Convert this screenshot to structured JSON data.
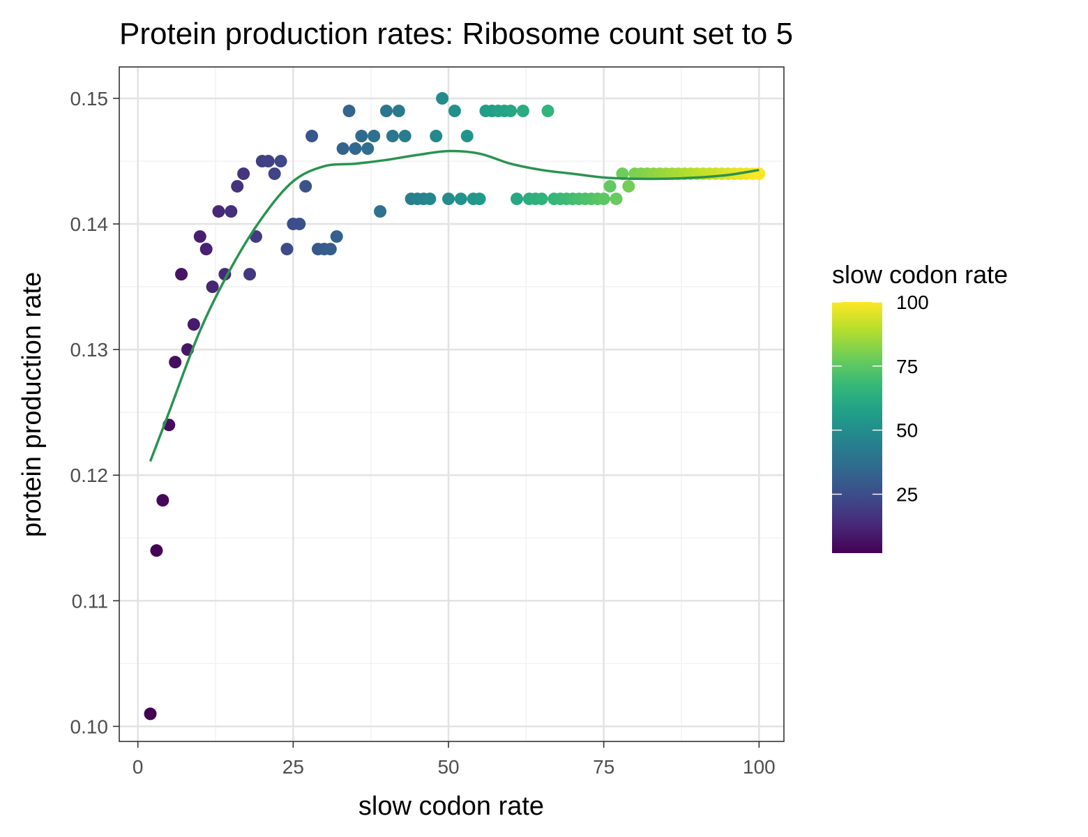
{
  "colors": {
    "background": "#ffffff",
    "grid_major": "#e3e3e3",
    "grid_minor": "#f1f1f1",
    "panel_border": "#333333",
    "smooth_line": "#2a9350",
    "viridis": [
      "#440154",
      "#482878",
      "#3e4a89",
      "#31688e",
      "#26828e",
      "#1f9e89",
      "#35b779",
      "#6dcd59",
      "#b4de2c",
      "#fde725"
    ]
  },
  "chart_data": {
    "type": "scatter",
    "title": "Protein production rates: Ribosome count set to 5",
    "xlabel": "slow codon rate",
    "ylabel": "protein production rate",
    "xlim": [
      -3,
      104
    ],
    "ylim": [
      0.0988,
      0.1525
    ],
    "x_ticks": [
      0,
      25,
      50,
      75,
      100
    ],
    "x_tick_labels": [
      "0",
      "25",
      "50",
      "75",
      "100"
    ],
    "x_minor_ticks": [
      12.5,
      37.5,
      62.5,
      87.5
    ],
    "y_ticks": [
      0.1,
      0.11,
      0.12,
      0.13,
      0.14,
      0.15
    ],
    "y_tick_labels": [
      "0.10",
      "0.11",
      "0.12",
      "0.13",
      "0.14",
      "0.15"
    ],
    "y_minor_ticks": [
      0.105,
      0.115,
      0.125,
      0.135,
      0.145
    ],
    "grid": true,
    "color_scale": "viridis",
    "legend": {
      "title": "slow codon rate",
      "position": "right",
      "range": [
        2,
        100
      ],
      "ticks": [
        25,
        50,
        75,
        100
      ],
      "tick_labels": [
        "25",
        "50",
        "75",
        "100"
      ]
    },
    "points": {
      "x": [
        2,
        3,
        4,
        5,
        6,
        7,
        8,
        9,
        10,
        11,
        12,
        13,
        14,
        15,
        16,
        17,
        18,
        19,
        20,
        21,
        22,
        23,
        24,
        25,
        26,
        27,
        28,
        29,
        30,
        31,
        32,
        33,
        34,
        35,
        36,
        37,
        38,
        39,
        40,
        41,
        42,
        43,
        44,
        45,
        46,
        47,
        48,
        49,
        50,
        51,
        52,
        53,
        54,
        55,
        56,
        57,
        58,
        59,
        60,
        61,
        62,
        63,
        64,
        65,
        66,
        67,
        68,
        69,
        70,
        71,
        72,
        73,
        74,
        75,
        76,
        77,
        78,
        79,
        80,
        81,
        82,
        83,
        84,
        85,
        86,
        87,
        88,
        89,
        90,
        91,
        92,
        93,
        94,
        95,
        96,
        97,
        98,
        99,
        100
      ],
      "y": [
        0.101,
        0.114,
        0.118,
        0.124,
        0.129,
        0.136,
        0.13,
        0.132,
        0.139,
        0.138,
        0.135,
        0.141,
        0.136,
        0.141,
        0.143,
        0.144,
        0.136,
        0.139,
        0.145,
        0.145,
        0.144,
        0.145,
        0.138,
        0.14,
        0.14,
        0.143,
        0.147,
        0.138,
        0.138,
        0.138,
        0.139,
        0.146,
        0.149,
        0.146,
        0.147,
        0.146,
        0.147,
        0.141,
        0.149,
        0.147,
        0.149,
        0.147,
        0.142,
        0.142,
        0.142,
        0.142,
        0.147,
        0.15,
        0.142,
        0.149,
        0.142,
        0.147,
        0.142,
        0.142,
        0.149,
        0.149,
        0.149,
        0.149,
        0.149,
        0.142,
        0.149,
        0.142,
        0.142,
        0.142,
        0.149,
        0.142,
        0.142,
        0.142,
        0.142,
        0.142,
        0.142,
        0.142,
        0.142,
        0.142,
        0.143,
        0.142,
        0.144,
        0.143,
        0.144,
        0.144,
        0.144,
        0.144,
        0.144,
        0.144,
        0.144,
        0.144,
        0.144,
        0.144,
        0.144,
        0.144,
        0.144,
        0.144,
        0.144,
        0.144,
        0.144,
        0.144,
        0.144,
        0.144,
        0.144
      ]
    },
    "smooth_line": {
      "x": [
        2,
        5,
        10,
        15,
        20,
        25,
        30,
        35,
        40,
        45,
        50,
        55,
        60,
        65,
        70,
        75,
        80,
        85,
        90,
        95,
        100
      ],
      "y": [
        0.1211,
        0.125,
        0.1315,
        0.1365,
        0.1405,
        0.1434,
        0.1446,
        0.1448,
        0.1451,
        0.1455,
        0.1458,
        0.1456,
        0.1448,
        0.1443,
        0.144,
        0.1437,
        0.1436,
        0.1436,
        0.1437,
        0.1439,
        0.1443
      ]
    }
  }
}
